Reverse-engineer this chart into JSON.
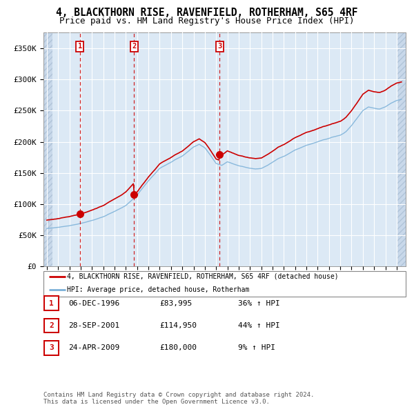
{
  "title": "4, BLACKTHORN RISE, RAVENFIELD, ROTHERHAM, S65 4RF",
  "subtitle": "Price paid vs. HM Land Registry's House Price Index (HPI)",
  "title_fontsize": 10.5,
  "subtitle_fontsize": 9,
  "ylim": [
    0,
    375000
  ],
  "yticks": [
    0,
    50000,
    100000,
    150000,
    200000,
    250000,
    300000,
    350000
  ],
  "ytick_labels": [
    "£0",
    "£50K",
    "£100K",
    "£150K",
    "£200K",
    "£250K",
    "£300K",
    "£350K"
  ],
  "xlim_start": 1993.7,
  "xlim_end": 2025.8,
  "xticks": [
    1994,
    1995,
    1996,
    1997,
    1998,
    1999,
    2000,
    2001,
    2002,
    2003,
    2004,
    2005,
    2006,
    2007,
    2008,
    2009,
    2010,
    2011,
    2012,
    2013,
    2014,
    2015,
    2016,
    2017,
    2018,
    2019,
    2020,
    2021,
    2022,
    2023,
    2024,
    2025
  ],
  "plot_bg_color": "#dce9f5",
  "grid_color": "#ffffff",
  "red_line_color": "#cc0000",
  "blue_line_color": "#7ab0d8",
  "sale_marker_color": "#cc0000",
  "dashed_line_color": "#cc0000",
  "sale_label_box_color": "#cc0000",
  "sale_label_text_color": "#cc0000",
  "purchases": [
    {
      "label": "1",
      "year": 1996.92,
      "price": 83995
    },
    {
      "label": "2",
      "year": 2001.74,
      "price": 114950
    },
    {
      "label": "3",
      "year": 2009.31,
      "price": 180000
    }
  ],
  "legend_items": [
    {
      "label": "4, BLACKTHORN RISE, RAVENFIELD, ROTHERHAM, S65 4RF (detached house)",
      "color": "#cc0000"
    },
    {
      "label": "HPI: Average price, detached house, Rotherham",
      "color": "#7ab0d8"
    }
  ],
  "table_rows": [
    {
      "num": "1",
      "date": "06-DEC-1996",
      "price": "£83,995",
      "change": "36% ↑ HPI"
    },
    {
      "num": "2",
      "date": "28-SEP-2001",
      "price": "£114,950",
      "change": "44% ↑ HPI"
    },
    {
      "num": "3",
      "date": "24-APR-2009",
      "price": "£180,000",
      "change": "9% ↑ HPI"
    }
  ],
  "footer": "Contains HM Land Registry data © Crown copyright and database right 2024.\nThis data is licensed under the Open Government Licence v3.0."
}
